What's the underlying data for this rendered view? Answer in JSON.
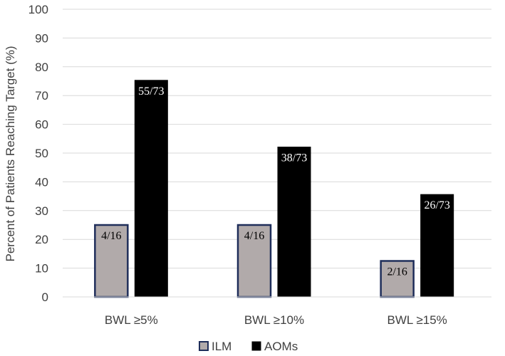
{
  "chart_data": {
    "type": "bar",
    "title": "",
    "ylabel": "Percent of Patients Reaching Target (%)",
    "xlabel": "",
    "ylim": [
      0,
      100
    ],
    "ytick_step": 10,
    "grid": true,
    "legend_position": "bottom",
    "categories": [
      "BWL ≥5%",
      "BWL ≥10%",
      "BWL ≥15%"
    ],
    "series": [
      {
        "name": "ILM",
        "values": [
          25,
          25,
          12.5
        ],
        "labels": [
          "4/16",
          "4/16",
          "2/16"
        ],
        "fill": "#b1aaaa",
        "stroke": "#1f2e5a",
        "label_color": "#000000"
      },
      {
        "name": "AOMs",
        "values": [
          75.3,
          52.1,
          35.6
        ],
        "labels": [
          "55/73",
          "38/73",
          "26/73"
        ],
        "fill": "#000000",
        "stroke": "#000000",
        "label_color": "#ffffff"
      }
    ]
  }
}
